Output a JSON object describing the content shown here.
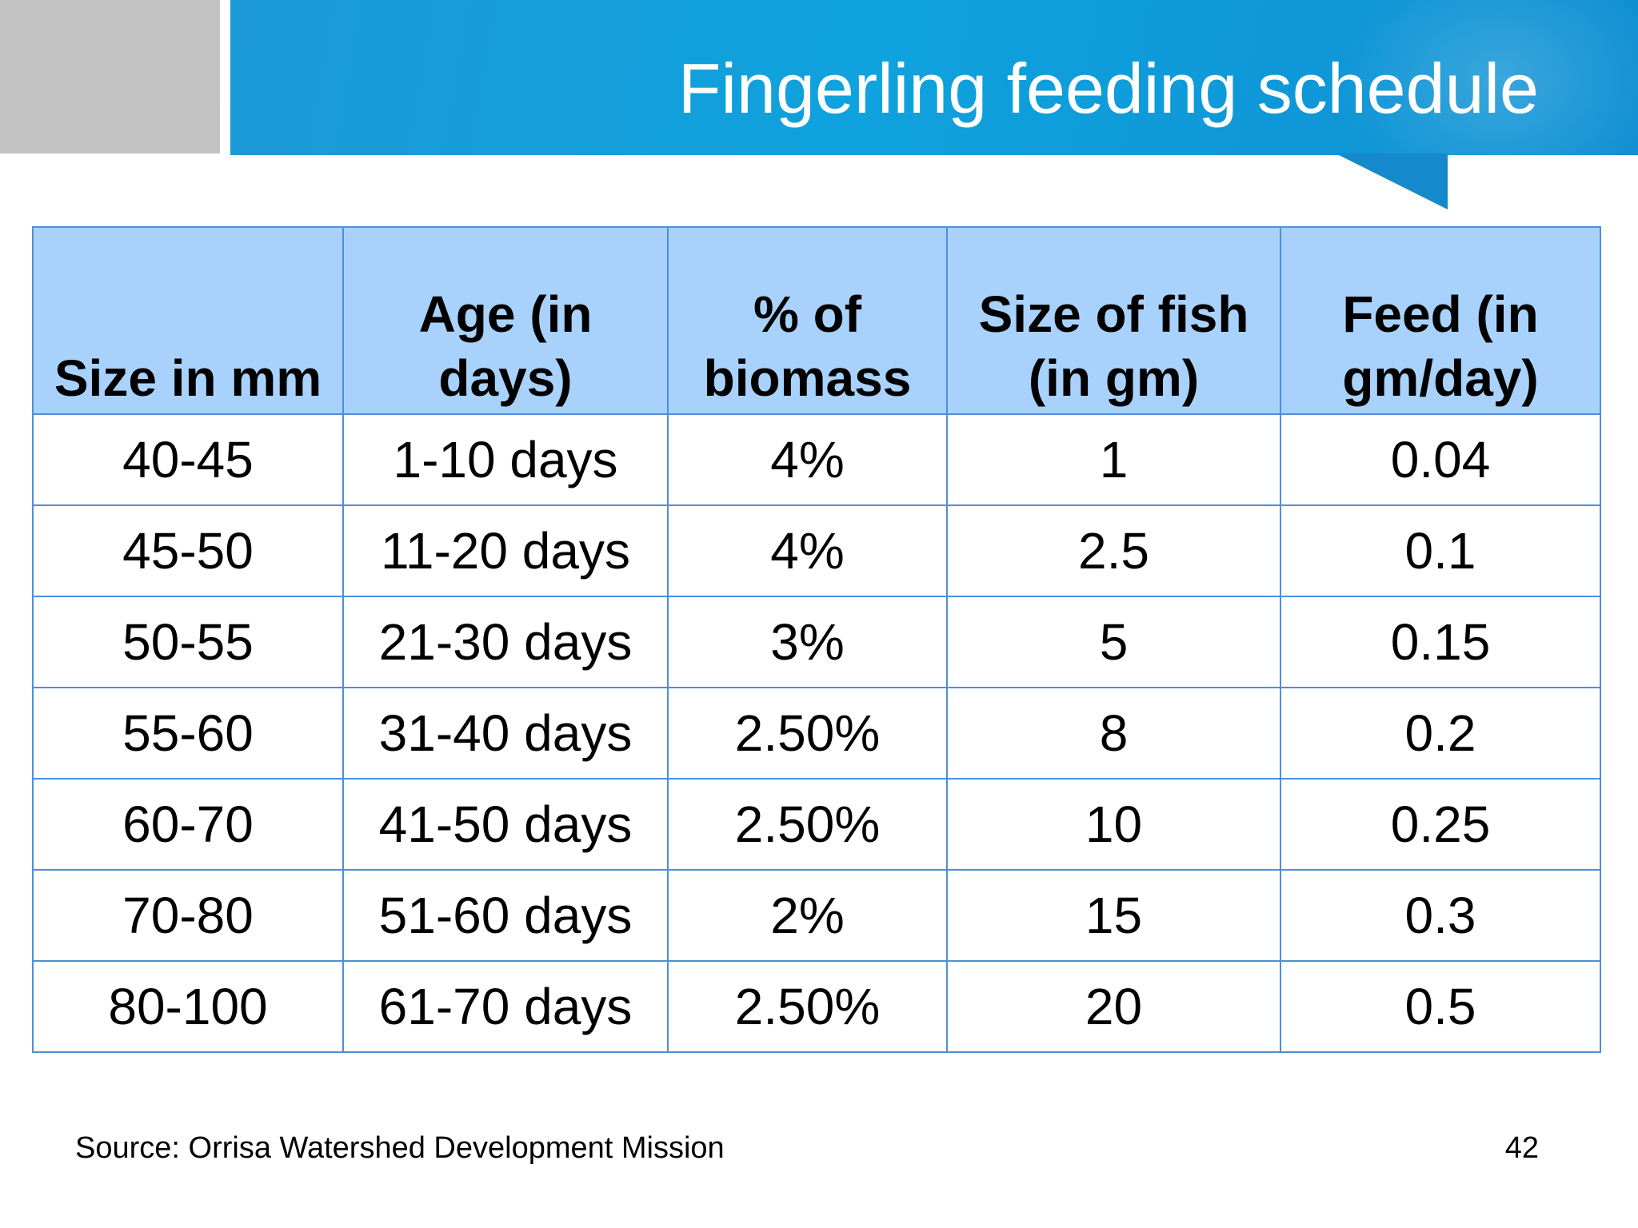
{
  "slide": {
    "title": "Fingerling feeding schedule",
    "source": "Source: Orrisa Watershed Development Mission",
    "page_number": "42",
    "colors": {
      "header_blue": "#1b9ad6",
      "table_header_fill": "#a8d2fb",
      "table_border": "#4c8fdb",
      "gray_block": "#c2c2c2"
    }
  },
  "table": {
    "headers": [
      [
        "Size in mm"
      ],
      [
        "Age (in",
        "days)"
      ],
      [
        "% of",
        "biomass"
      ],
      [
        "Size of fish",
        "(in gm)"
      ],
      [
        "Feed (in",
        "gm/day)"
      ]
    ],
    "rows": [
      [
        "40-45",
        "1-10 days",
        "4%",
        "1",
        "0.04"
      ],
      [
        "45-50",
        "11-20 days",
        "4%",
        "2.5",
        "0.1"
      ],
      [
        "50-55",
        "21-30 days",
        "3%",
        "5",
        "0.15"
      ],
      [
        "55-60",
        "31-40 days",
        "2.50%",
        "8",
        "0.2"
      ],
      [
        "60-70",
        "41-50 days",
        "2.50%",
        "10",
        "0.25"
      ],
      [
        "70-80",
        "51-60 days",
        "2%",
        "15",
        "0.3"
      ],
      [
        "80-100",
        "61-70 days",
        "2.50%",
        "20",
        "0.5"
      ]
    ]
  }
}
